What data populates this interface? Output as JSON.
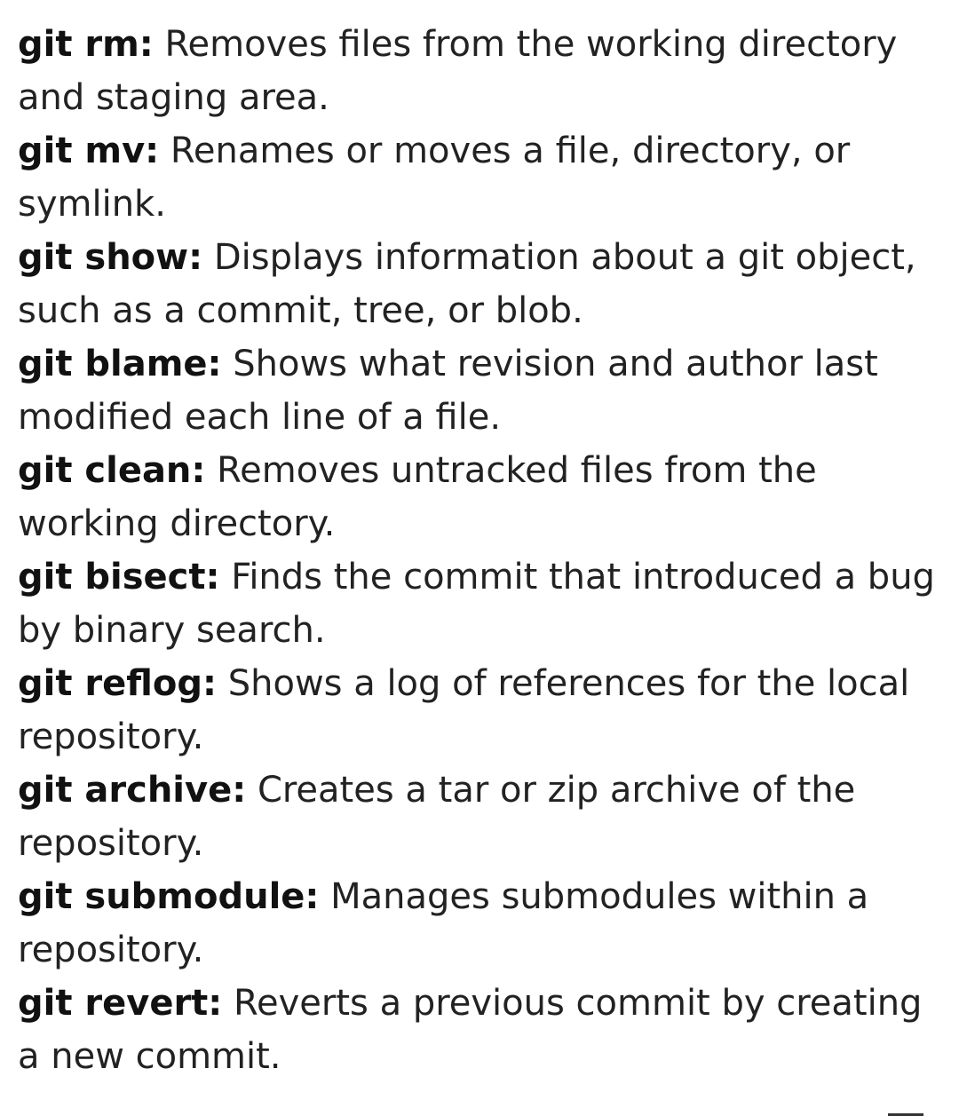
{
  "entries": [
    {
      "command": "git rm:",
      "description": "Removes files from the working directory and staging area."
    },
    {
      "command": "git mv:",
      "description": "Renames or moves a file, directory, or symlink."
    },
    {
      "command": "git show:",
      "description": "Displays information about a git object, such as a commit, tree, or blob."
    },
    {
      "command": "git blame:",
      "description": "Shows what revision and author last modified each line of a file."
    },
    {
      "command": "git clean:",
      "description": "Removes untracked files from the working directory."
    },
    {
      "command": "git bisect:",
      "description": "Finds the commit that introduced a bug by binary search."
    },
    {
      "command": "git reflog:",
      "description": "Shows a log of references for the local repository."
    },
    {
      "command": "git archive:",
      "description": "Creates a tar or zip archive of the repository."
    },
    {
      "command": "git submodule:",
      "description": "Manages submodules within a repository."
    },
    {
      "command": "git revert:",
      "description": "Reverts a previous commit by creating a new commit."
    }
  ]
}
